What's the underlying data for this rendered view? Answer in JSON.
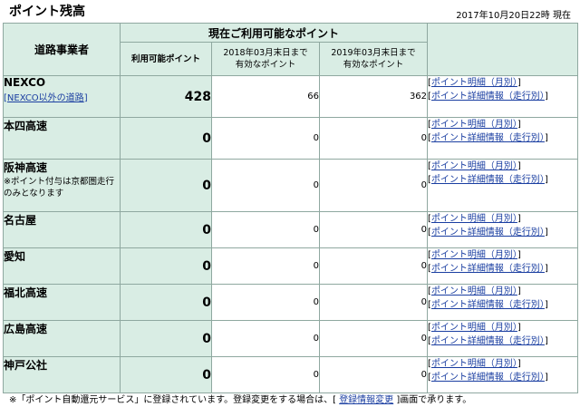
{
  "header": {
    "title": "ポイント残高",
    "timestamp": "2017年10月20日22時 現在"
  },
  "table": {
    "col_operator": "道路事業者",
    "col_group": "現在ご利用可能なポイント",
    "col_available": "利用可能ポイント",
    "col_exp1_line1": "2018年03月末日まで",
    "col_exp1_line2": "有効なポイント",
    "col_exp2_line1": "2019年03月末日まで",
    "col_exp2_line2": "有効なポイント",
    "link_monthly": "ポイント明細（月別）",
    "link_detail": "ポイント詳細情報（走行別）",
    "bracket_open": "[",
    "bracket_close": "]",
    "rows": [
      {
        "name": "NEXCO",
        "sublink": "NEXCO以外の道路",
        "available": "428",
        "exp2018": "66",
        "exp2019": "362"
      },
      {
        "name": "本四高速",
        "available": "0",
        "exp2018": "0",
        "exp2019": "0"
      },
      {
        "name": "阪神高速",
        "note": "※ポイント付与は京都圏走行のみとなります",
        "available": "0",
        "exp2018": "0",
        "exp2019": "0"
      },
      {
        "name": "名古屋",
        "available": "0",
        "exp2018": "0",
        "exp2019": "0"
      },
      {
        "name": "愛知",
        "available": "0",
        "exp2018": "0",
        "exp2019": "0"
      },
      {
        "name": "福北高速",
        "available": "0",
        "exp2018": "0",
        "exp2019": "0"
      },
      {
        "name": "広島高速",
        "available": "0",
        "exp2018": "0",
        "exp2019": "0"
      },
      {
        "name": "神戸公社",
        "available": "0",
        "exp2018": "0",
        "exp2019": "0"
      }
    ]
  },
  "footer": {
    "text_before": "※「ポイント自動還元サービス」に登録されています。登録変更をする場合は、",
    "link": "登録情報変更",
    "text_after": "画面で承ります。"
  }
}
